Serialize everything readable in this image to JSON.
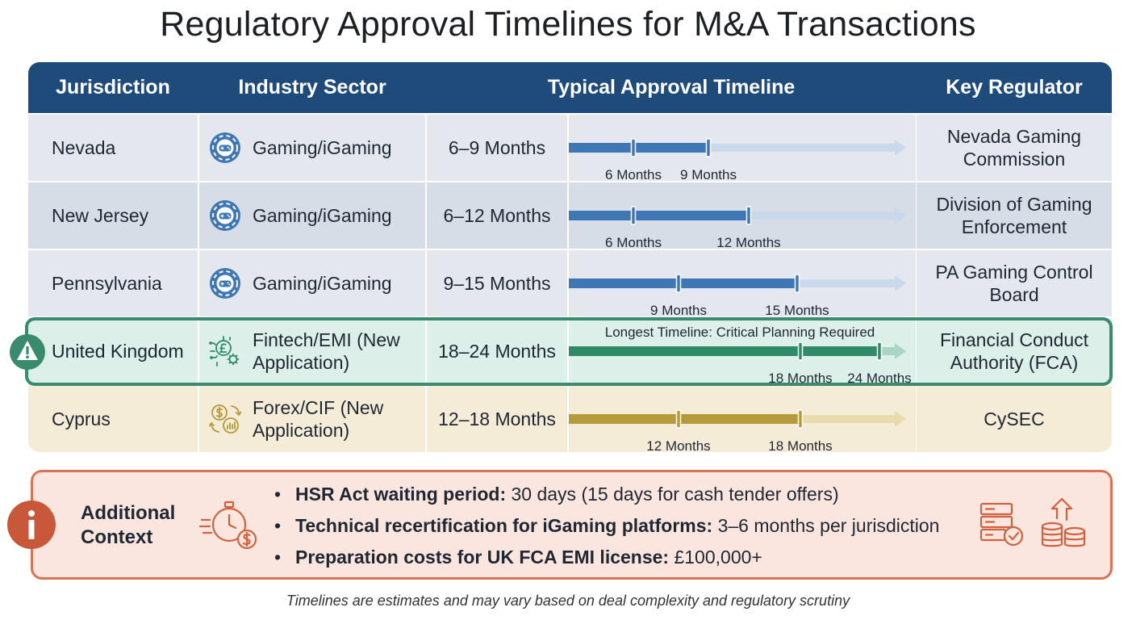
{
  "title": "Regulatory Approval Timelines for M&A Transactions",
  "colors": {
    "header": "#1f4b7a",
    "gaming": "#3f77b5",
    "fintech": "#2f8a68",
    "forex": "#b59a3b",
    "highlight": "#3a8b6e",
    "context": "#d87455"
  },
  "table": {
    "headers": [
      "Jurisdiction",
      "Industry Sector",
      "Typical Approval Timeline",
      "Key Regulator"
    ],
    "rows": [
      {
        "jurisdiction": "Nevada",
        "sector": "Gaming/iGaming",
        "icon": "gaming-chip-icon",
        "timeline": "6–9 Months",
        "min_label": "6 Months",
        "max_label": "9 Months",
        "min": 6,
        "max": 9,
        "regulator": "Nevada Gaming Commission",
        "color": "#3f77b5",
        "bg": "#e4e8ee"
      },
      {
        "jurisdiction": "New Jersey",
        "sector": "Gaming/iGaming",
        "icon": "gaming-chip-icon",
        "timeline": "6–12 Months",
        "min_label": "6 Months",
        "max_label": "12 Months",
        "min": 6,
        "max": 12,
        "regulator": "Division of Gaming Enforcement",
        "color": "#3f77b5",
        "bg": "#d6dde6"
      },
      {
        "jurisdiction": "Pennsylvania",
        "sector": "Gaming/iGaming",
        "icon": "gaming-chip-icon",
        "timeline": "9–15 Months",
        "min_label": "9 Months",
        "max_label": "15 Months",
        "min": 9,
        "max": 15,
        "regulator": "PA Gaming Control Board",
        "color": "#3f77b5",
        "bg": "#e4e8ee"
      },
      {
        "jurisdiction": "United Kingdom",
        "sector": "Fintech/EMI (New Application)",
        "icon": "fintech-gear-icon",
        "timeline": "18–24 Months",
        "min_label": "18 Months",
        "max_label": "24 Months",
        "min": 18,
        "max": 24,
        "regulator": "Financial Conduct Authority (FCA)",
        "color": "#2f8a68",
        "bg": "#dcefe8",
        "callout": "Longest Timeline: Critical Planning Required"
      },
      {
        "jurisdiction": "Cyprus",
        "sector": "Forex/CIF (New Application)",
        "icon": "forex-exchange-icon",
        "timeline": "12–18 Months",
        "min_label": "12 Months",
        "max_label": "18 Months",
        "min": 12,
        "max": 18,
        "regulator": "CySEC",
        "color": "#b59a3b",
        "bg": "#f5ecd8"
      }
    ]
  },
  "chart_data": {
    "type": "bar",
    "title": "Regulatory Approval Timelines for M&A Transactions",
    "categories": [
      "Nevada",
      "New Jersey",
      "Pennsylvania",
      "United Kingdom",
      "Cyprus"
    ],
    "series": [
      {
        "name": "",
        "values": [
          [
            6,
            9
          ],
          [
            6,
            12
          ],
          [
            9,
            15
          ],
          [
            18,
            24
          ],
          [
            12,
            18
          ]
        ]
      }
    ],
    "xlabel": "",
    "ylabel": ""
  },
  "context": {
    "title": "Additional Context",
    "items": [
      {
        "bold": "HSR Act waiting period:",
        "text": " 30 days (15 days for cash tender offers)"
      },
      {
        "bold": "Technical recertification for iGaming platforms:",
        "text": " 3–6 months per jurisdiction"
      },
      {
        "bold": "Preparation costs for UK FCA EMI license:",
        "text": " £100,000+"
      }
    ]
  },
  "footnote": "Timelines are estimates and may vary based on deal complexity and regulatory scrutiny"
}
